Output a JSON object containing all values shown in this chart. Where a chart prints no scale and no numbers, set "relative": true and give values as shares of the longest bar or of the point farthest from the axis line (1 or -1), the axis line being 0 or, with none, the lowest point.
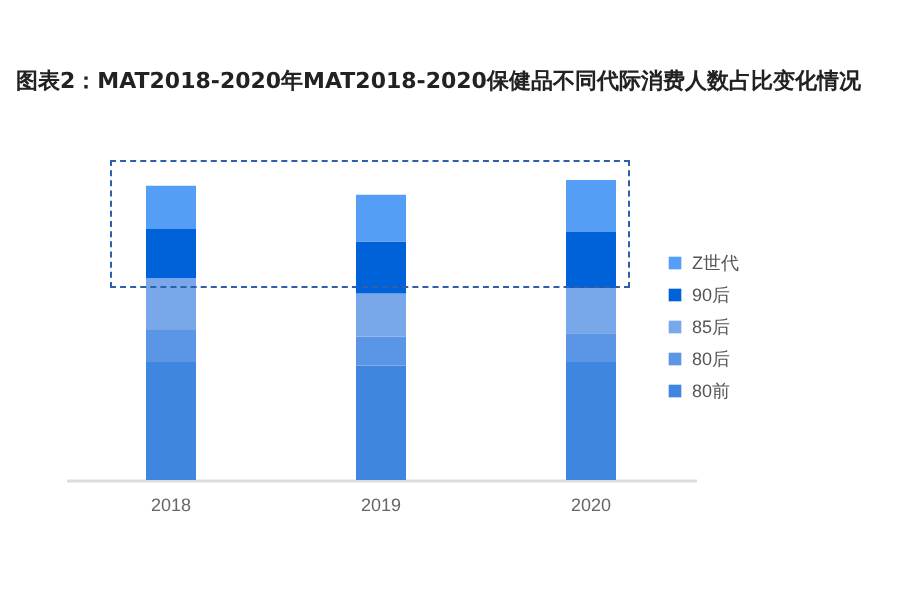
{
  "chart_data": {
    "type": "bar",
    "title": "图表2：MAT2018-2020年MAT2018-2020保健品不同代际消费人数占比变化情况",
    "categories": [
      "2018",
      "2019",
      "2020"
    ],
    "stacked": true,
    "relative": true,
    "legend": "right",
    "grid": false,
    "series": [
      {
        "name": "80前",
        "color": "#3f86e0",
        "values": [
          0.393,
          0.382,
          0.393
        ]
      },
      {
        "name": "80后",
        "color": "#5a96e5",
        "values": [
          0.107,
          0.096,
          0.096
        ]
      },
      {
        "name": "85后",
        "color": "#79a8ea",
        "values": [
          0.173,
          0.144,
          0.151
        ]
      },
      {
        "name": "90后",
        "color": "#0062d9",
        "values": [
          0.164,
          0.173,
          0.187
        ]
      },
      {
        "name": "Z世代",
        "color": "#559ef5",
        "values": [
          0.144,
          0.156,
          0.173
        ]
      }
    ]
  }
}
